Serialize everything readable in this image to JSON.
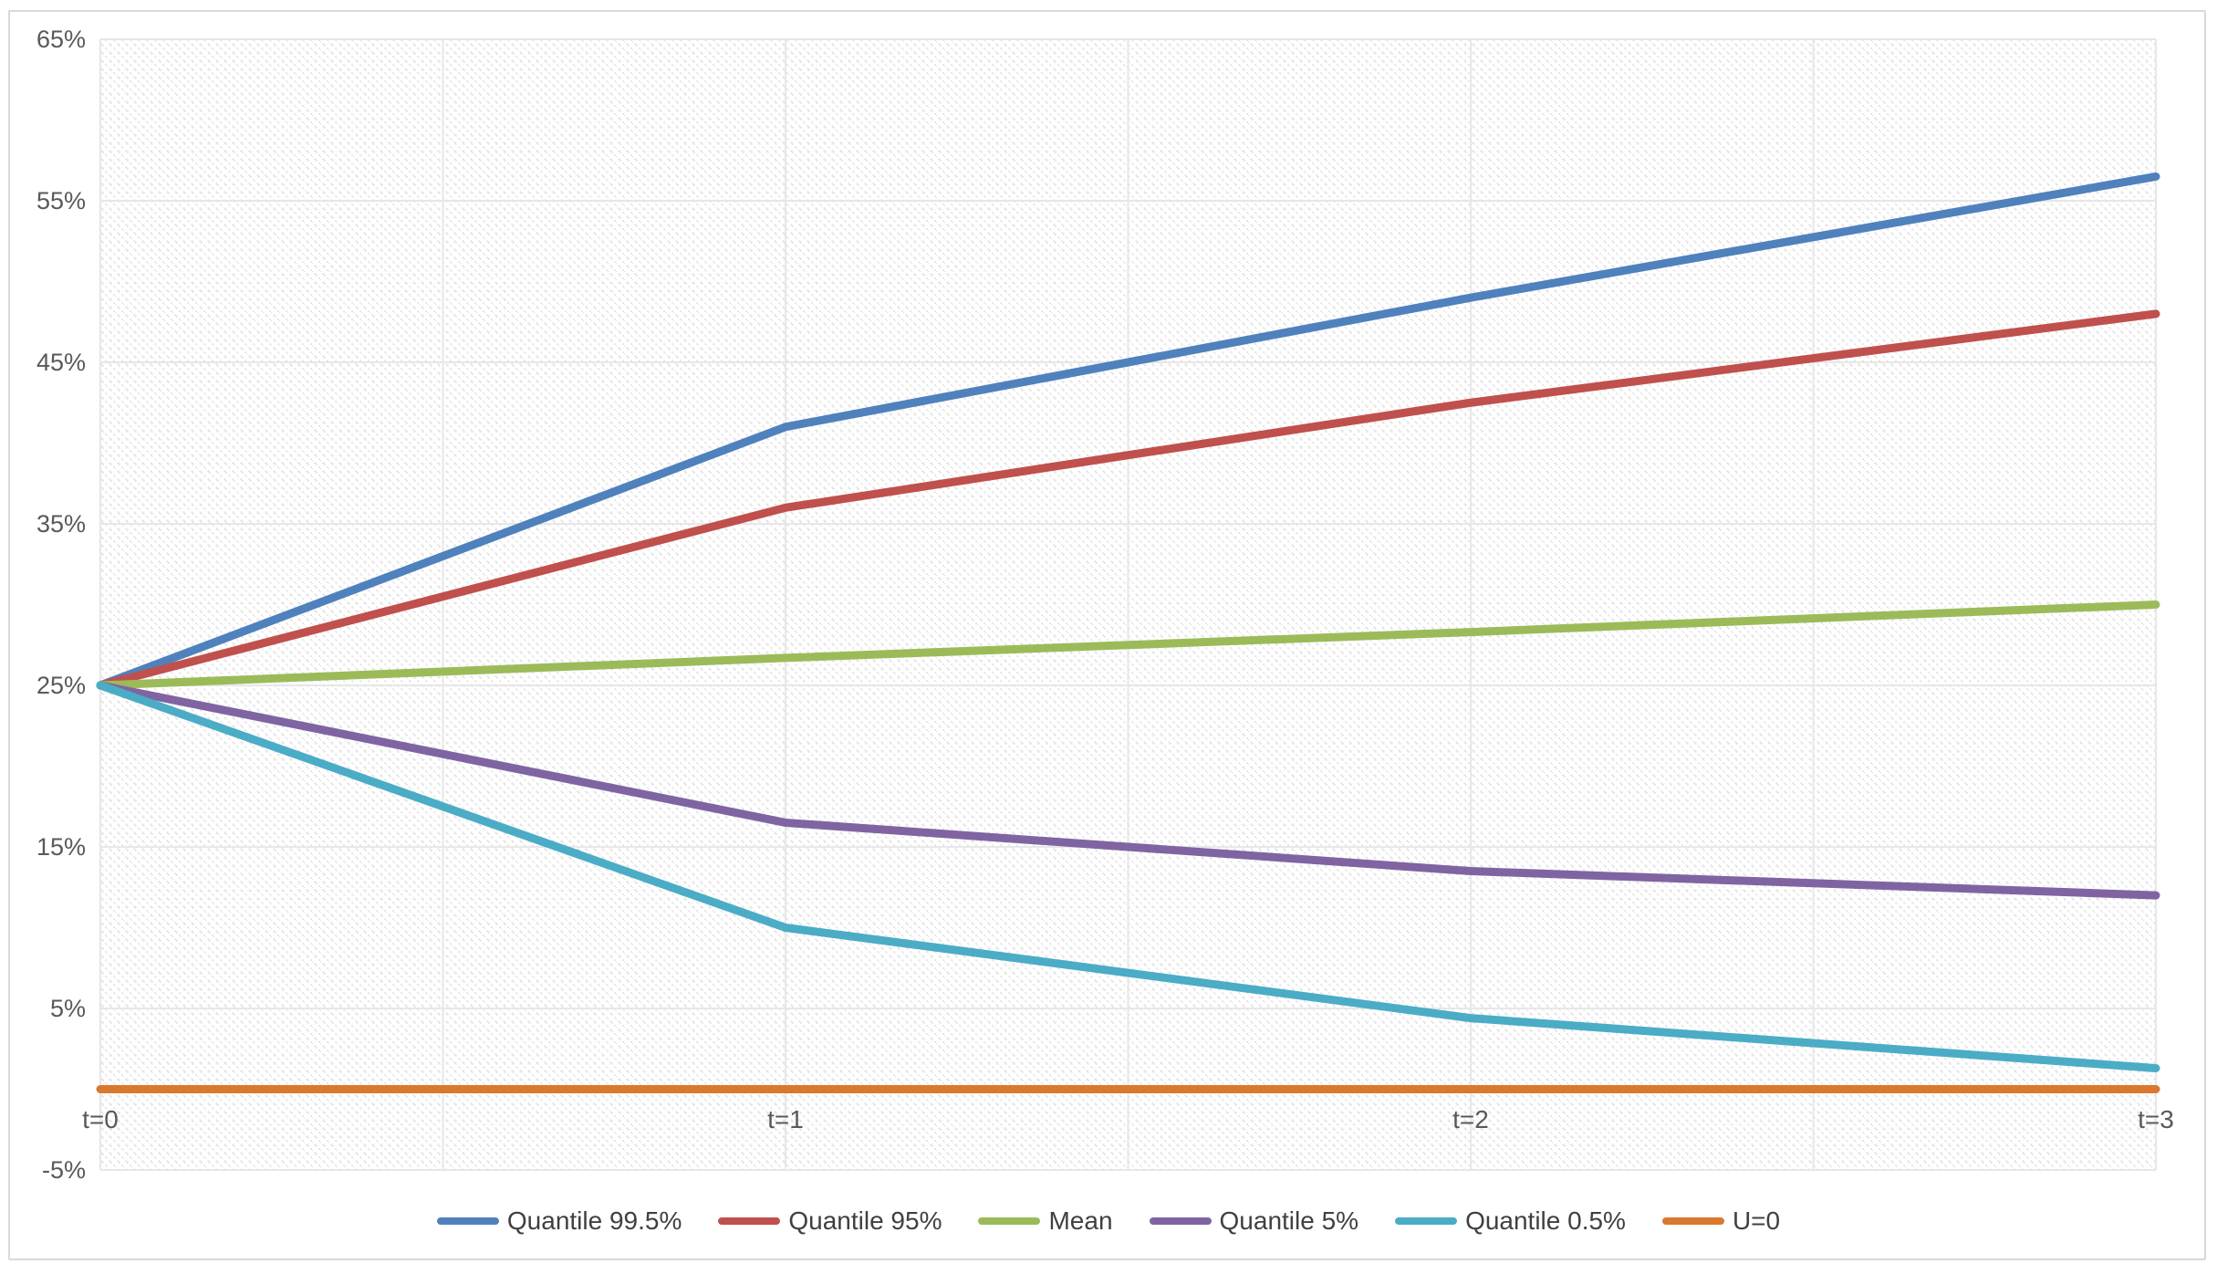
{
  "chart_data": {
    "type": "line",
    "title": "",
    "xlabel": "",
    "ylabel": "",
    "categories": [
      "t=0",
      "t=1",
      "t=2",
      "t=3"
    ],
    "y_ticks": [
      {
        "value": 65,
        "label": "65%"
      },
      {
        "value": 55,
        "label": "55%"
      },
      {
        "value": 45,
        "label": "45%"
      },
      {
        "value": 35,
        "label": "35%"
      },
      {
        "value": 25,
        "label": "25%"
      },
      {
        "value": 15,
        "label": "15%"
      },
      {
        "value": 5,
        "label": "5%"
      },
      {
        "value": -5,
        "label": "-5%"
      }
    ],
    "ylim": [
      -5,
      65
    ],
    "grid": {
      "horizontal": true,
      "vertical": true,
      "vertical_lines_per_interval": 2,
      "gridline_color": "#e7e7e7",
      "plot_background_pattern": "light-downward-diagonal-hatch",
      "hatch_color": "#e3e3e3"
    },
    "legend_position": "bottom-center",
    "series": [
      {
        "name": "Quantile 99.5%",
        "color": "#4F81BD",
        "values": [
          25,
          41,
          49,
          56.5
        ]
      },
      {
        "name": "Quantile 95%",
        "color": "#C0504D",
        "values": [
          25,
          36,
          42.5,
          48
        ]
      },
      {
        "name": "Mean",
        "color": "#9BBB59",
        "values": [
          25,
          26.7,
          28.3,
          30
        ]
      },
      {
        "name": "Quantile 5%",
        "color": "#8064A2",
        "values": [
          25,
          16.5,
          13.5,
          12
        ]
      },
      {
        "name": "Quantile 0.5%",
        "color": "#4BACC6",
        "values": [
          25,
          10,
          4.4,
          1.3
        ]
      },
      {
        "name": "U=0",
        "color": "#D9782E",
        "values": [
          0,
          0,
          0,
          0
        ]
      }
    ]
  }
}
